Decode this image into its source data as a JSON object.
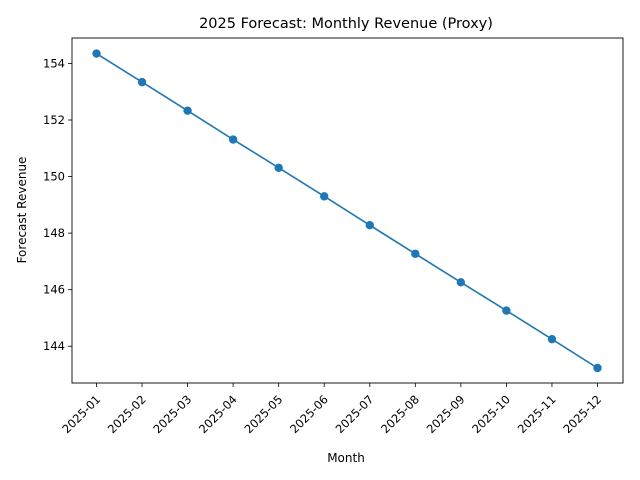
{
  "chart_data": {
    "type": "line",
    "title": "2025 Forecast: Monthly Revenue (Proxy)",
    "xlabel": "Month",
    "ylabel": "Forecast Revenue",
    "categories": [
      "2025-01",
      "2025-02",
      "2025-03",
      "2025-04",
      "2025-05",
      "2025-06",
      "2025-07",
      "2025-08",
      "2025-09",
      "2025-10",
      "2025-11",
      "2025-12"
    ],
    "series": [
      {
        "values": [
          154.35,
          153.34,
          152.33,
          151.31,
          150.31,
          149.3,
          148.28,
          147.27,
          146.26,
          145.26,
          144.25,
          143.23
        ],
        "color": "#1f77b4",
        "marker": "circle"
      }
    ],
    "ylim": [
      142.7,
      154.9
    ],
    "yticks": [
      144,
      146,
      148,
      150,
      152,
      154
    ],
    "grid": false,
    "legend": "none"
  }
}
